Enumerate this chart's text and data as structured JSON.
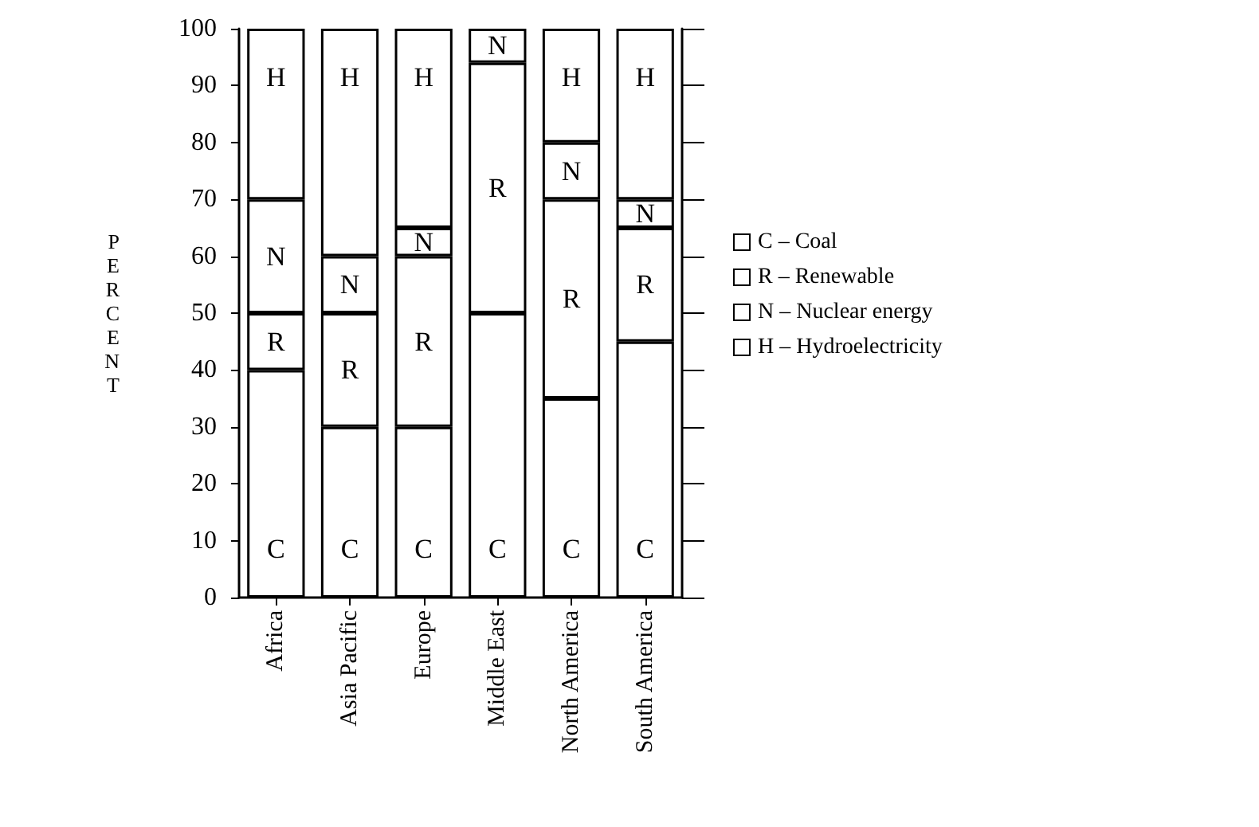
{
  "chart_data": {
    "type": "bar",
    "stacked": true,
    "ylabel": "PERCENT",
    "categories": [
      "Africa",
      "Asia Pacific",
      "Europe",
      "Middle East",
      "North America",
      "South America"
    ],
    "series": [
      {
        "name": "C – Coal",
        "color": "#ffffff",
        "values": [
          40,
          30,
          30,
          50,
          35,
          45
        ],
        "value_labels": [
          "C",
          "C",
          "C",
          "C",
          "C",
          "C"
        ]
      },
      {
        "name": "R – Renewable",
        "color": "#ffffff",
        "values": [
          10,
          20,
          30,
          44,
          35,
          20
        ],
        "value_labels": [
          "R",
          "R",
          "R",
          "R",
          "R",
          "R"
        ]
      },
      {
        "name": "N – Nuclear energy",
        "color": "#ffffff",
        "values": [
          20,
          10,
          5,
          6,
          10,
          5
        ],
        "value_labels": [
          "N",
          "N",
          "N",
          "N",
          "N",
          "N"
        ]
      },
      {
        "name": "H – Hydroelectricity",
        "color": "#ffffff",
        "values": [
          30,
          40,
          35,
          null,
          20,
          30
        ],
        "value_labels": [
          "H",
          "H",
          "H",
          null,
          "H",
          "H"
        ]
      }
    ],
    "ylim": [
      0,
      100
    ],
    "yticks": [
      0,
      10,
      20,
      30,
      40,
      50,
      60,
      70,
      80,
      90,
      100
    ],
    "legend": "right",
    "grid": false
  }
}
